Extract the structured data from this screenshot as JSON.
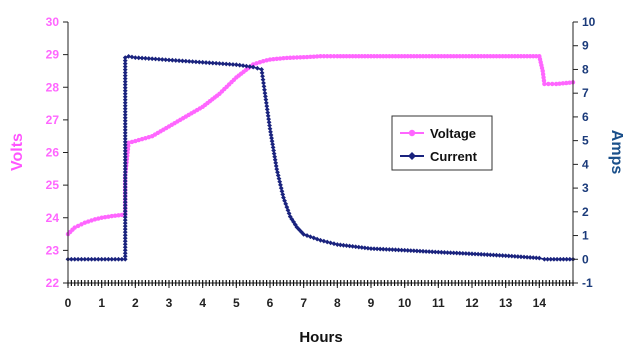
{
  "chart_data": {
    "type": "line",
    "xlabel": "Hours",
    "ylabel_left": "Volts",
    "ylabel_right": "Amps",
    "xlim": [
      0,
      15
    ],
    "ylim_left": [
      22,
      30
    ],
    "ylim_right": [
      -1,
      10
    ],
    "x_ticks": [
      "0",
      "1",
      "2",
      "3",
      "4",
      "5",
      "6",
      "7",
      "8",
      "9",
      "10",
      "11",
      "12",
      "13",
      "14"
    ],
    "y_left_ticks": [
      "22",
      "23",
      "24",
      "25",
      "26",
      "27",
      "28",
      "29",
      "30"
    ],
    "y_right_ticks": [
      "-1",
      "0",
      "1",
      "2",
      "3",
      "4",
      "5",
      "6",
      "7",
      "8",
      "9",
      "10"
    ],
    "grid": false,
    "legend_position": "right-middle",
    "series": [
      {
        "name": "Voltage",
        "axis": "left",
        "color": "#ff66ff",
        "marker": "circle",
        "x": [
          0,
          0.2,
          0.5,
          0.8,
          1.0,
          1.3,
          1.7,
          1.7,
          1.8,
          2.0,
          2.5,
          3.0,
          3.5,
          4.0,
          4.5,
          5.0,
          5.5,
          5.8,
          6.0,
          6.5,
          7.0,
          7.5,
          8.0,
          9.0,
          10.0,
          11.0,
          12.0,
          13.0,
          14.0,
          14.1,
          14.15,
          14.5,
          15.0
        ],
        "values": [
          23.5,
          23.7,
          23.85,
          23.95,
          24.0,
          24.05,
          24.1,
          25.3,
          26.3,
          26.35,
          26.5,
          26.8,
          27.1,
          27.4,
          27.8,
          28.3,
          28.7,
          28.8,
          28.85,
          28.9,
          28.92,
          28.95,
          28.95,
          28.95,
          28.95,
          28.95,
          28.95,
          28.95,
          28.95,
          28.5,
          28.1,
          28.1,
          28.15
        ]
      },
      {
        "name": "Current",
        "axis": "right",
        "color": "#1a237e",
        "marker": "diamond",
        "x": [
          0,
          0.5,
          1.0,
          1.7,
          1.7,
          1.8,
          2.0,
          2.5,
          3.0,
          3.5,
          4.0,
          4.5,
          5.0,
          5.5,
          5.75,
          5.85,
          6.0,
          6.2,
          6.4,
          6.6,
          6.8,
          7.0,
          7.5,
          8.0,
          9.0,
          10.0,
          11.0,
          12.0,
          13.0,
          14.0,
          14.15,
          15.0
        ],
        "values": [
          0,
          0,
          0,
          0,
          8.5,
          8.55,
          8.5,
          8.45,
          8.4,
          8.35,
          8.3,
          8.25,
          8.2,
          8.1,
          8.0,
          7.0,
          5.5,
          3.8,
          2.6,
          1.8,
          1.35,
          1.05,
          0.8,
          0.62,
          0.45,
          0.38,
          0.3,
          0.23,
          0.15,
          0.05,
          0.0,
          0.0
        ]
      }
    ]
  }
}
